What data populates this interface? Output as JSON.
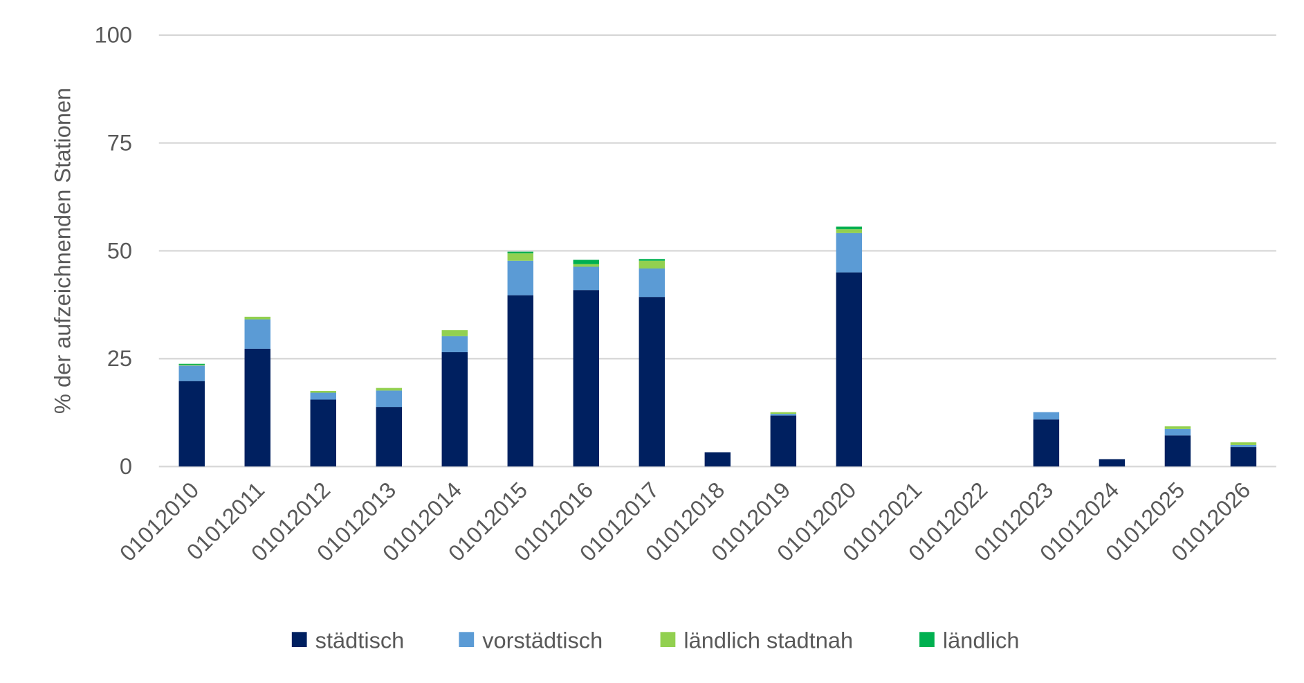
{
  "chart_data": {
    "type": "bar",
    "stacked": true,
    "title": "",
    "xlabel": "",
    "ylabel": "% der aufzeichnenden Stationen",
    "ylim": [
      0,
      100
    ],
    "yticks": [
      "0",
      "25",
      "50",
      "75",
      "100"
    ],
    "grid": true,
    "legend_position": "bottom",
    "categories": [
      "01012010",
      "01012011",
      "01012012",
      "01012013",
      "01012014",
      "01012015",
      "01012016",
      "01012017",
      "01012018",
      "01012019",
      "01012020",
      "01012021",
      "01012022",
      "01012023",
      "01012024",
      "01012025",
      "01012026"
    ],
    "series": [
      {
        "name": "städtisch",
        "color": "#002060",
        "values": [
          19.8,
          27.3,
          15.5,
          13.8,
          26.5,
          39.7,
          40.9,
          39.3,
          3.3,
          11.8,
          45.0,
          0,
          0,
          10.9,
          1.7,
          7.2,
          4.5
        ]
      },
      {
        "name": "vorstädtisch",
        "color": "#5B9BD5",
        "values": [
          3.6,
          6.8,
          1.6,
          3.8,
          3.7,
          8.0,
          5.4,
          6.6,
          0,
          0.4,
          9.1,
          0,
          0,
          1.7,
          0,
          1.5,
          0.5
        ]
      },
      {
        "name": "ländlich stadtnah",
        "color": "#92D050",
        "values": [
          0.2,
          0.6,
          0.4,
          0.6,
          1.4,
          1.7,
          0.6,
          1.8,
          0,
          0.4,
          0.9,
          0,
          0,
          0,
          0,
          0.6,
          0.6
        ]
      },
      {
        "name": "ländlich",
        "color": "#00B050",
        "values": [
          0.2,
          0,
          0,
          0,
          0,
          0.4,
          1.0,
          0.4,
          0,
          0,
          0.6,
          0,
          0,
          0,
          0,
          0,
          0
        ]
      }
    ]
  }
}
